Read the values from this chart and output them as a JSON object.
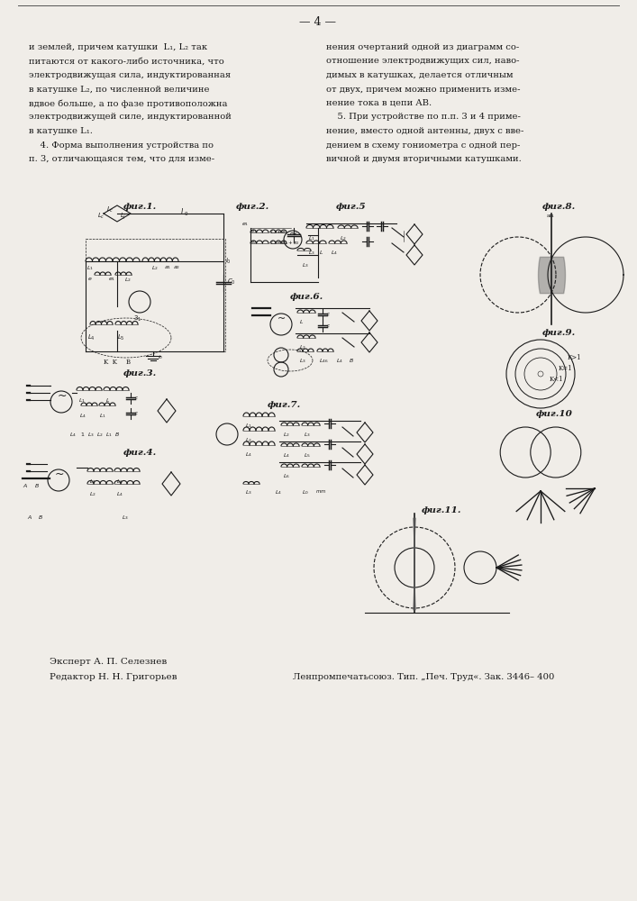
{
  "background_color": "#f0ede8",
  "page_number": "4",
  "top_text_left": [
    "и землей, причем катушки  L₁, L₂ так",
    "питаются от какого-либо источника, что",
    "электродвижущая сила, индуктированная",
    "в катушке L₂, по численной величине",
    "вдвое больше, а по фазе противоположна",
    "электродвижущей силе, индуктированной",
    "в катушке L₁.",
    "    4. Форма выполнения устройства по",
    "п. 3, отличающаяся тем, что для изме-"
  ],
  "top_text_right": [
    "нения очертаний одной из диаграмм со-",
    "отношение электродвижущих сил, наво-",
    "димых в катушках, делается отличным",
    "от двух, причем можно применить изме-",
    "нение тока в цепи AB.",
    "    5. При устройстве по п.п. 3 и 4 приме-",
    "нение, вместо одной антенны, двух с вве-",
    "дением в схему гониометра с одной пер-",
    "вичной и двумя вторичными катушками."
  ],
  "expert_text": "Эксперт А. П. Селезнев",
  "editor_text": "Редактор Н. Н. Григорьев",
  "publisher_text": "Ленпромпечатьсоюз. Тип. „Печ. Труд«. Зак. 3446– 400",
  "text_color": "#1a1a1a",
  "diagram_color": "#1a1a1a"
}
